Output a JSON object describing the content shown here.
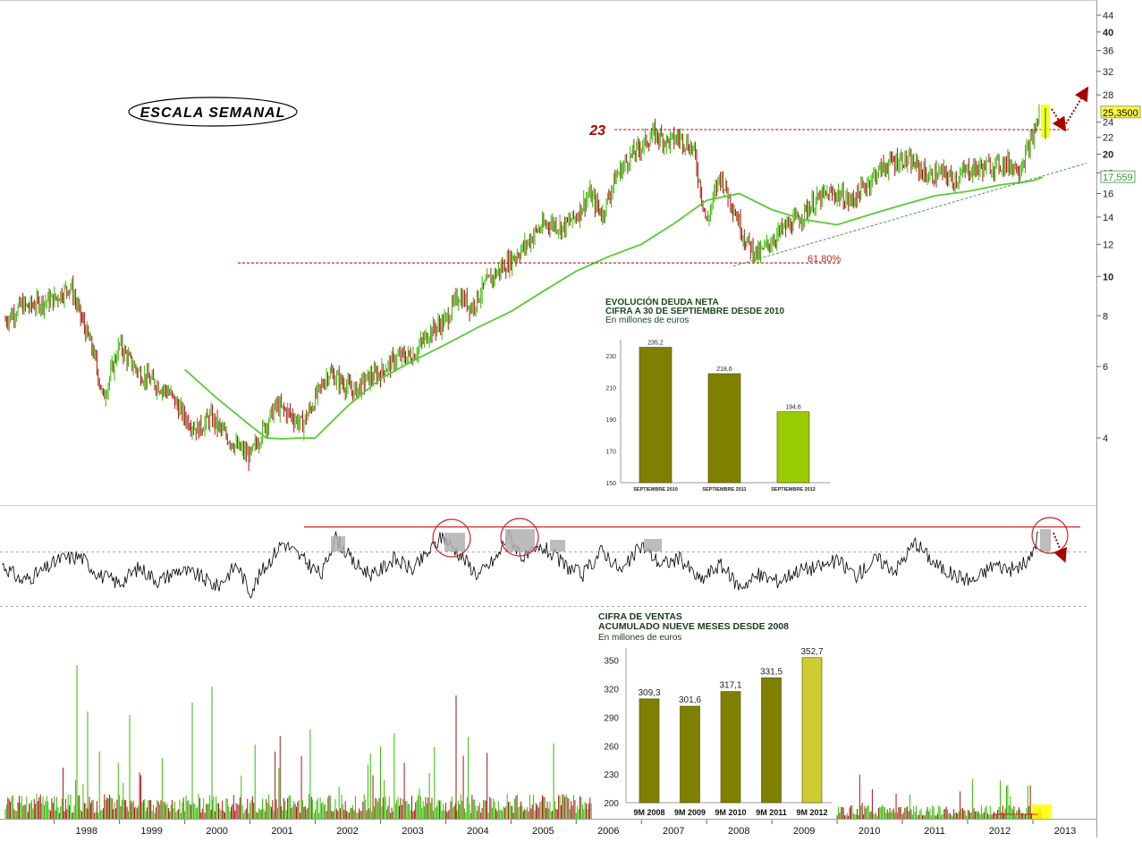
{
  "chart_data": [
    {
      "type": "line",
      "log_scale": true,
      "yticks": [
        "44",
        "40",
        "36",
        "32",
        "28",
        "24",
        "22",
        "20",
        "18",
        "16",
        "14",
        "12",
        "10",
        "8",
        "6",
        "4"
      ],
      "xticks": [
        "1998",
        "1999",
        "2000",
        "2001",
        "2002",
        "2003",
        "2004",
        "2005",
        "2006",
        "2007",
        "2008",
        "2009",
        "2010",
        "2011",
        "2012",
        "2013"
      ],
      "label_box": "ESCALA SEMANAL",
      "resistance_label": "23",
      "resistance_value": 23,
      "fib_label": "61,80%",
      "fib_value": 10.8,
      "last_price_label": "25,3500",
      "ma_value_label": "17,559",
      "series": [
        {
          "style": "price",
          "x": [
            1997.25,
            1997.5,
            1997.6,
            1997.75,
            1998.0,
            1998.25,
            1998.4,
            1998.6,
            1998.75,
            1999.0,
            1999.15,
            1999.3,
            1999.5,
            1999.75,
            2000.0,
            2000.2,
            2000.4,
            2000.6,
            2000.8,
            2001.0,
            2001.2,
            2001.4,
            2001.6,
            2001.8,
            2002.0,
            2002.2,
            2002.4,
            2002.6,
            2002.8,
            2003.0,
            2003.25,
            2003.5,
            2003.75,
            2004.0,
            2004.2,
            2004.4,
            2004.6,
            2004.8,
            2005.0,
            2005.2,
            2005.4,
            2005.6,
            2005.8,
            2006.0,
            2006.2,
            2006.4,
            2006.6,
            2006.8,
            2007.0,
            2007.2,
            2007.4,
            2007.6,
            2007.8,
            2008.0,
            2008.2,
            2008.4,
            2008.6,
            2008.8,
            2009.0,
            2009.2,
            2009.4,
            2009.6,
            2009.8,
            2010.0,
            2010.2,
            2010.4,
            2010.6,
            2010.8,
            2011.0,
            2011.2,
            2011.4,
            2011.6,
            2011.8,
            2012.0,
            2012.2,
            2012.4,
            2012.6,
            2012.8,
            2013.0,
            2013.1
          ],
          "y": [
            7.8,
            8.5,
            8.4,
            8.6,
            8.8,
            9.5,
            8.0,
            6.5,
            5.0,
            6.8,
            6.2,
            5.8,
            5.5,
            5.2,
            4.5,
            4.2,
            4.5,
            4.1,
            3.8,
            3.6,
            4.2,
            4.8,
            4.6,
            4.3,
            5.0,
            5.8,
            5.5,
            5.2,
            5.6,
            5.8,
            6.3,
            6.4,
            7.3,
            7.8,
            9.0,
            8.4,
            9.5,
            10.3,
            11.0,
            11.8,
            13.0,
            13.6,
            13.2,
            14.1,
            16.0,
            14.2,
            17.5,
            19.5,
            21.0,
            22.5,
            21.5,
            22.0,
            20.5,
            13.5,
            17.8,
            15.0,
            12.2,
            11.3,
            12.3,
            13.2,
            13.8,
            15.0,
            15.8,
            16.0,
            15.3,
            16.5,
            18.0,
            19.0,
            19.5,
            18.8,
            17.6,
            18.0,
            17.3,
            18.3,
            18.5,
            18.8,
            19.0,
            18.5,
            22.0,
            25.35
          ]
        },
        {
          "style": "ma",
          "x": [
            2000.0,
            2000.5,
            2001.0,
            2001.25,
            2001.5,
            2001.75,
            2002.0,
            2002.5,
            2003.0,
            2003.5,
            2004.0,
            2004.5,
            2005.0,
            2005.5,
            2006.0,
            2006.5,
            2007.0,
            2007.5,
            2008.0,
            2008.5,
            2009.0,
            2009.5,
            2010.0,
            2010.5,
            2011.0,
            2011.5,
            2012.0,
            2012.5,
            2013.0,
            2013.15
          ],
          "y": [
            5.9,
            5.0,
            4.3,
            4.0,
            3.98,
            4.0,
            4.0,
            4.8,
            5.6,
            6.2,
            6.8,
            7.5,
            8.2,
            9.2,
            10.3,
            11.2,
            12.0,
            13.5,
            15.4,
            16.0,
            14.6,
            13.8,
            13.4,
            14.2,
            15.0,
            15.8,
            16.2,
            16.8,
            17.2,
            17.56
          ]
        }
      ]
    },
    {
      "type": "line",
      "title": "",
      "series": [
        {
          "style": "oscillator",
          "x": [
            1997.2,
            1997.5,
            1997.8,
            1998.1,
            1998.4,
            1998.7,
            1999.0,
            1999.3,
            1999.6,
            1999.9,
            2000.2,
            2000.5,
            2000.8,
            2001.0,
            2001.2,
            2001.5,
            2001.8,
            2002.1,
            2002.3,
            2002.6,
            2002.9,
            2003.2,
            2003.5,
            2003.8,
            2003.95,
            2004.2,
            2004.5,
            2004.8,
            2004.95,
            2005.2,
            2005.5,
            2005.8,
            2006.1,
            2006.4,
            2006.7,
            2007.0,
            2007.3,
            2007.6,
            2007.9,
            2008.2,
            2008.5,
            2008.8,
            2009.1,
            2009.4,
            2009.7,
            2010.0,
            2010.3,
            2010.6,
            2010.9,
            2011.2,
            2011.5,
            2011.8,
            2012.1,
            2012.4,
            2012.7,
            2012.95,
            2013.1
          ],
          "y": [
            55,
            40,
            48,
            60,
            62,
            45,
            38,
            52,
            40,
            50,
            45,
            35,
            55,
            30,
            50,
            75,
            60,
            45,
            80,
            55,
            45,
            60,
            50,
            70,
            80,
            65,
            45,
            62,
            82,
            60,
            70,
            55,
            45,
            68,
            48,
            72,
            55,
            60,
            40,
            55,
            35,
            45,
            40,
            50,
            52,
            58,
            45,
            60,
            50,
            75,
            55,
            45,
            40,
            55,
            50,
            58,
            85
          ]
        }
      ]
    },
    {
      "type": "bar",
      "title": "EVOLUCIÓN DEUDA NETA",
      "subtitle": "CIFRA A 30 DE SEPTIEMBRE DESDE 2010",
      "ylabel": "En millones de euros",
      "categories": [
        "SEPTIEMBRE 2010",
        "SEPTIEMBRE 2011",
        "SEPTIEMBRE 2012"
      ],
      "values": [
        235.2,
        218.6,
        194.6
      ],
      "value_labels": [
        "235,2",
        "218,6",
        "194,6"
      ],
      "ylim": [
        150,
        240
      ],
      "yticks": [
        150,
        170,
        190,
        210,
        230
      ],
      "colors": [
        "#808000",
        "#808000",
        "#99cc00"
      ]
    },
    {
      "type": "bar",
      "title": "CIFRA DE VENTAS",
      "subtitle": "ACUMULADO NUEVE MESES DESDE 2008",
      "ylabel": "En millones de euros",
      "categories": [
        "9M 2008",
        "9M 2009",
        "9M 2010",
        "9M 2011",
        "9M 2012"
      ],
      "values": [
        309.3,
        301.6,
        317.1,
        331.5,
        352.7
      ],
      "value_labels": [
        "309,3",
        "301,6",
        "317,1",
        "331,5",
        "352,7"
      ],
      "ylim": [
        200,
        360
      ],
      "yticks": [
        200,
        230,
        260,
        290,
        320,
        350
      ],
      "colors": [
        "#808000",
        "#808000",
        "#808000",
        "#808000",
        "#cccc33"
      ]
    }
  ],
  "colors": {
    "up": "#33bb00",
    "down": "#aa1111",
    "ma": "#55cc33",
    "resistance": "#aa0000",
    "highlight": "#ffff00"
  }
}
